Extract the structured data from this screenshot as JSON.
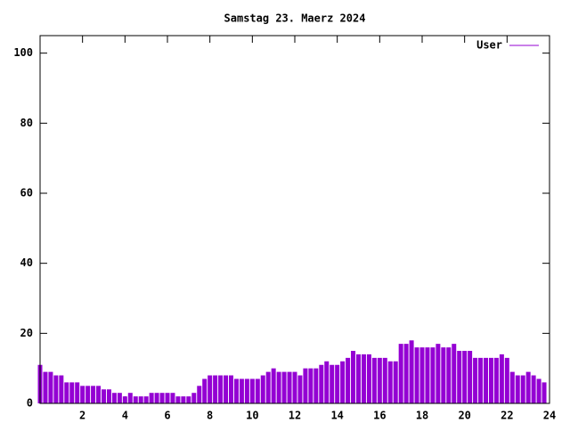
{
  "chart_data": {
    "type": "impulse",
    "title": "Samstag 23. Maerz 2024",
    "x": [
      0,
      0.25,
      0.5,
      0.75,
      1,
      1.25,
      1.5,
      1.75,
      2,
      2.25,
      2.5,
      2.75,
      3,
      3.25,
      3.5,
      3.75,
      4,
      4.25,
      4.5,
      4.75,
      5,
      5.25,
      5.5,
      5.75,
      6,
      6.25,
      6.5,
      6.75,
      7,
      7.25,
      7.5,
      7.75,
      8,
      8.25,
      8.5,
      8.75,
      9,
      9.25,
      9.5,
      9.75,
      10,
      10.25,
      10.5,
      10.75,
      11,
      11.25,
      11.5,
      11.75,
      12,
      12.25,
      12.5,
      12.75,
      13,
      13.25,
      13.5,
      13.75,
      14,
      14.25,
      14.5,
      14.75,
      15,
      15.25,
      15.5,
      15.75,
      16,
      16.25,
      16.5,
      16.75,
      17,
      17.25,
      17.5,
      17.75,
      18,
      18.25,
      18.5,
      18.75,
      19,
      19.25,
      19.5,
      19.75,
      20,
      20.25,
      20.5,
      20.75,
      21,
      21.25,
      21.5,
      21.75,
      22,
      22.25,
      22.5,
      22.75,
      23,
      23.25,
      23.5,
      23.75
    ],
    "series": [
      {
        "name": "User",
        "color": "#9400d3",
        "values": [
          11,
          9,
          9,
          8,
          8,
          6,
          6,
          6,
          5,
          5,
          5,
          5,
          4,
          4,
          3,
          3,
          2,
          3,
          2,
          2,
          2,
          3,
          3,
          3,
          3,
          3,
          2,
          2,
          2,
          3,
          5,
          7,
          8,
          8,
          8,
          8,
          8,
          7,
          7,
          7,
          7,
          7,
          8,
          9,
          10,
          9,
          9,
          9,
          9,
          8,
          10,
          10,
          10,
          11,
          12,
          11,
          11,
          12,
          13,
          15,
          14,
          14,
          14,
          13,
          13,
          13,
          12,
          12,
          17,
          17,
          18,
          16,
          16,
          16,
          16,
          17,
          16,
          16,
          17,
          15,
          15,
          15,
          13,
          13,
          13,
          13,
          13,
          14,
          13,
          9,
          8,
          8,
          9,
          8,
          7,
          6
        ]
      }
    ],
    "xlim": [
      0,
      24
    ],
    "xticks": [
      2,
      4,
      6,
      8,
      10,
      12,
      14,
      16,
      18,
      20,
      22,
      24
    ],
    "ylim": [
      0,
      105
    ],
    "yticks": [
      0,
      20,
      40,
      60,
      80,
      100
    ],
    "legend": "upper right"
  }
}
